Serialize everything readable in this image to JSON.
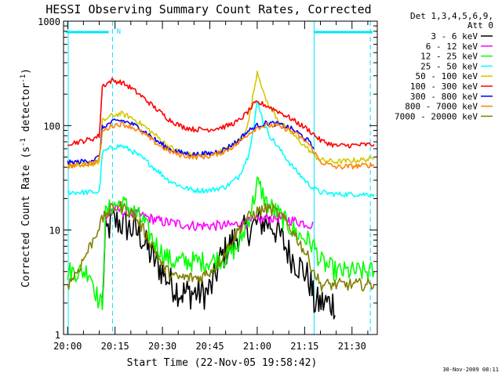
{
  "chart_data": {
    "type": "line",
    "title": "HESSI Observing Summary Count Rates, Corrected",
    "xlabel": "Start Time (22-Nov-05 19:58:42)",
    "ylabel_parts": [
      "Corrected Count Rate (s",
      "-1",
      " detector",
      "-1",
      ")"
    ],
    "y_scale": "log",
    "ylim": [
      1,
      1000
    ],
    "y_ticks": [
      1,
      10,
      100,
      1000
    ],
    "y_tick_labels": [
      "1",
      "10",
      "100",
      "1000"
    ],
    "xlim_min": [
      1198.7,
      1298
    ],
    "x_ticks_min": [
      1200,
      1215,
      1230,
      1245,
      1260,
      1275,
      1290
    ],
    "x_tick_labels": [
      "20:00",
      "20:15",
      "20:30",
      "20:45",
      "21:00",
      "21:15",
      "21:30"
    ],
    "x_unit": "minutes after 00:00 UT",
    "grid": false,
    "legend_header": [
      "Det 1,3,4,5,6,9,",
      "Att 0"
    ],
    "legend_position": "right",
    "timestamp": "30-Nov-2009 08:11",
    "markers": {
      "night_bars": [
        [
          1199.5,
          1213.0
        ],
        [
          1278.0,
          1296.5
        ]
      ],
      "night_label": "N",
      "night_label_x": 1215.5,
      "day_boundaries": [
        1200.2,
        1278.0
      ],
      "saa_boundaries": [
        1214.2,
        1295.8
      ]
    },
    "series": [
      {
        "name": "3 - 6 keV",
        "color": "#000000",
        "x": [
          1200,
          1203,
          1207,
          1210,
          1211,
          1212,
          1214,
          1216,
          1218,
          1221,
          1223,
          1226,
          1230,
          1233,
          1236,
          1240,
          1244,
          1246,
          1248,
          1251,
          1254,
          1257,
          1259,
          1261,
          1263,
          1265,
          1267,
          1270,
          1272,
          1275,
          1277,
          1278,
          1285,
          1297
        ],
        "y": [
          null,
          null,
          null,
          null,
          2,
          9,
          12,
          12,
          11,
          10,
          9,
          6,
          4,
          3,
          2.5,
          2.5,
          2.5,
          3,
          5,
          7,
          9,
          10,
          11,
          12,
          12,
          11,
          9,
          6,
          5,
          4,
          3,
          2,
          2,
          null
        ]
      },
      {
        "name": "6 - 12 keV",
        "color": "#ff00ff",
        "x": [
          1200,
          1207,
          1210,
          1211,
          1212,
          1214,
          1216,
          1218,
          1222,
          1226,
          1230,
          1235,
          1240,
          1245,
          1250,
          1255,
          1258,
          1261,
          1263,
          1265,
          1267,
          1270,
          1273,
          1276,
          1278,
          1285,
          1297
        ],
        "y": [
          null,
          null,
          null,
          2,
          12,
          16,
          15.5,
          15,
          14,
          13,
          12,
          11.5,
          11,
          11,
          11,
          11.5,
          12,
          12.5,
          13,
          13,
          13,
          12.5,
          12,
          11.5,
          11,
          null,
          null
        ]
      },
      {
        "name": "12 - 25 keV",
        "color": "#00ff00",
        "x": [
          1200,
          1204,
          1207,
          1210,
          1211,
          1212,
          1214,
          1217,
          1220,
          1224,
          1227,
          1230,
          1233,
          1236,
          1240,
          1245,
          1250,
          1254,
          1257,
          1259,
          1260,
          1261,
          1263,
          1265,
          1267,
          1270,
          1273,
          1276,
          1278,
          1280,
          1285,
          1292,
          1297
        ],
        "y": [
          4,
          4,
          4,
          2,
          2,
          14,
          17,
          18,
          16,
          12,
          8,
          6,
          5,
          5,
          5,
          5,
          5.5,
          7,
          12,
          20,
          28,
          25,
          18,
          16,
          14,
          11,
          9,
          8,
          7,
          5,
          4,
          4,
          4
        ]
      },
      {
        "name": "25 - 50 keV",
        "color": "#00ffff",
        "x": [
          1200,
          1204,
          1208,
          1210,
          1211,
          1214,
          1217,
          1220,
          1224,
          1228,
          1232,
          1236,
          1240,
          1245,
          1250,
          1254,
          1257,
          1259,
          1260,
          1261,
          1262,
          1264,
          1267,
          1270,
          1273,
          1276,
          1278,
          1280,
          1285,
          1297
        ],
        "y": [
          23,
          23,
          23,
          23,
          55,
          62,
          64,
          58,
          48,
          38,
          30,
          26,
          24,
          24,
          26,
          32,
          50,
          100,
          170,
          140,
          105,
          80,
          60,
          45,
          35,
          28,
          25,
          23,
          22,
          22
        ]
      },
      {
        "name": "50 - 100 keV",
        "color": "#d4c800",
        "x": [
          1200,
          1204,
          1208,
          1210,
          1211,
          1214,
          1217,
          1220,
          1224,
          1228,
          1232,
          1236,
          1240,
          1245,
          1250,
          1254,
          1257,
          1259,
          1260,
          1261,
          1262,
          1264,
          1267,
          1270,
          1273,
          1276,
          1278,
          1280,
          1285,
          1297
        ],
        "y": [
          42,
          42,
          43,
          45,
          110,
          125,
          130,
          120,
          100,
          80,
          63,
          55,
          52,
          53,
          58,
          70,
          100,
          220,
          330,
          270,
          200,
          150,
          110,
          90,
          73,
          60,
          52,
          47,
          45,
          48
        ]
      },
      {
        "name": "100 - 300 keV",
        "color": "#ff0000",
        "x": [
          1200,
          1204,
          1208,
          1210,
          1211,
          1214,
          1217,
          1220,
          1224,
          1228,
          1232,
          1236,
          1240,
          1245,
          1250,
          1254,
          1257,
          1259,
          1260,
          1262,
          1264,
          1267,
          1270,
          1273,
          1276,
          1278,
          1280,
          1285,
          1297
        ],
        "y": [
          68,
          70,
          75,
          80,
          240,
          270,
          260,
          230,
          185,
          145,
          115,
          98,
          92,
          92,
          98,
          110,
          135,
          160,
          165,
          160,
          150,
          135,
          120,
          105,
          92,
          82,
          72,
          64,
          66
        ]
      },
      {
        "name": "300 - 800 keV",
        "color": "#0000ff",
        "x": [
          1200,
          1204,
          1208,
          1210,
          1211,
          1214,
          1217,
          1220,
          1224,
          1228,
          1232,
          1236,
          1240,
          1245,
          1250,
          1254,
          1257,
          1260,
          1263,
          1266,
          1270,
          1273,
          1276,
          1278
        ],
        "y": [
          44,
          45,
          47,
          50,
          95,
          108,
          112,
          105,
          90,
          72,
          60,
          55,
          53,
          54,
          60,
          72,
          88,
          100,
          106,
          104,
          96,
          85,
          72,
          60
        ]
      },
      {
        "name": "800 - 7000 keV",
        "color": "#ff8000",
        "x": [
          1200,
          1204,
          1208,
          1210,
          1211,
          1214,
          1217,
          1220,
          1224,
          1228,
          1232,
          1236,
          1240,
          1245,
          1250,
          1254,
          1257,
          1260,
          1263,
          1266,
          1270,
          1273,
          1276,
          1278,
          1280,
          1285,
          1297
        ],
        "y": [
          41,
          42,
          44,
          47,
          88,
          100,
          104,
          98,
          84,
          68,
          57,
          52,
          50,
          51,
          57,
          68,
          83,
          96,
          101,
          99,
          92,
          80,
          68,
          56,
          45,
          40,
          42
        ]
      },
      {
        "name": "7000 - 20000 keV",
        "color": "#808000",
        "x": [
          1200,
          1203,
          1206,
          1208,
          1210,
          1212,
          1214,
          1216,
          1218,
          1221,
          1224,
          1227,
          1230,
          1234,
          1238,
          1242,
          1245,
          1248,
          1251,
          1254,
          1257,
          1260,
          1263,
          1265,
          1267,
          1270,
          1273,
          1276,
          1278,
          1280,
          1285,
          1292,
          1297
        ],
        "y": [
          3,
          4,
          6,
          8,
          11,
          14,
          16,
          17,
          16,
          14,
          10,
          7,
          4.5,
          3.5,
          3.5,
          3.5,
          4,
          5,
          7,
          10,
          13,
          15,
          16,
          15.5,
          14,
          11,
          8,
          5.5,
          4,
          3,
          3,
          3,
          3
        ]
      }
    ]
  }
}
